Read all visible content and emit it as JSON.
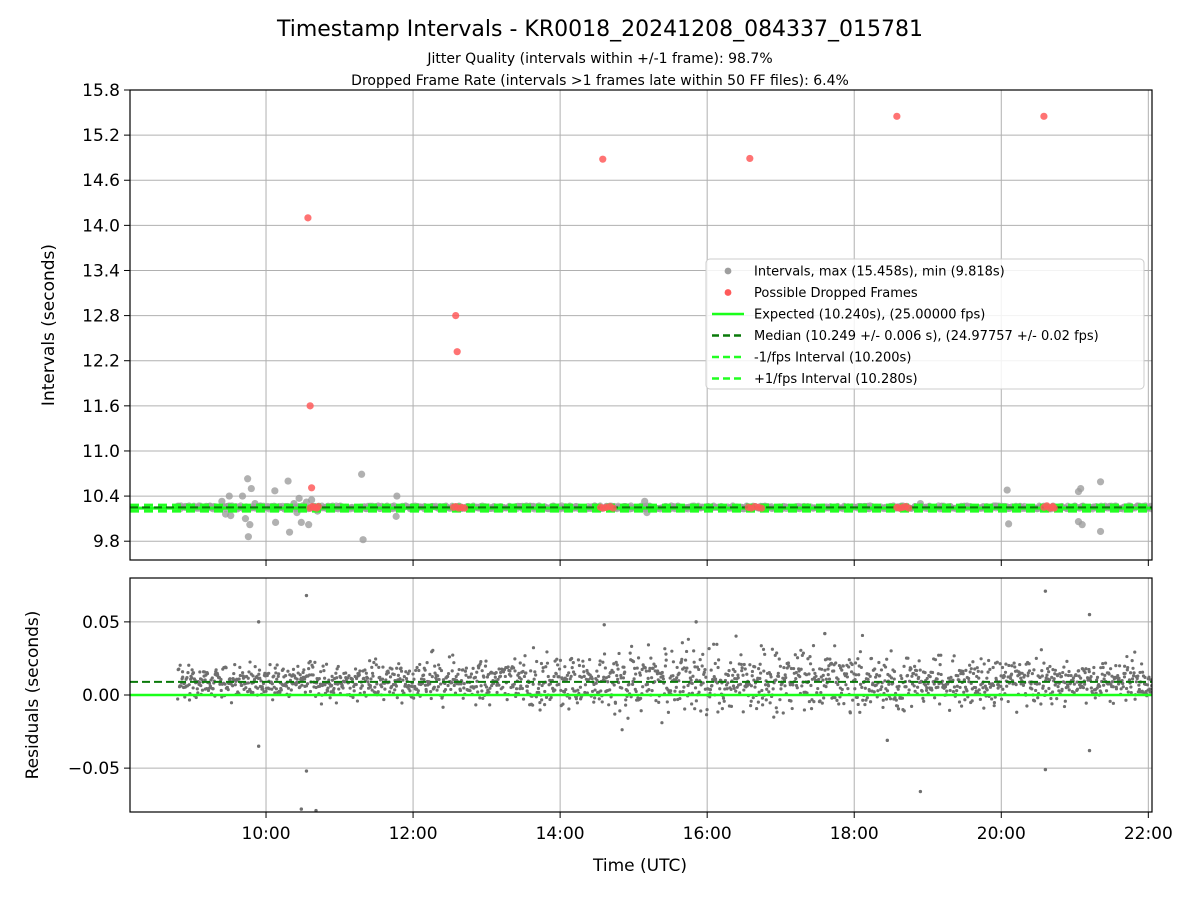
{
  "figure": {
    "title": "Timestamp Intervals - KR0018_20241208_084337_015781",
    "subtitle_1": "Jitter Quality (intervals within +/-1 frame): 98.7%",
    "subtitle_2": "Dropped Frame Rate (intervals >1 frames late within 50 FF files): 6.4%"
  },
  "colors": {
    "intervals": "#9e9e9e",
    "dropped": "#ff5a5a",
    "expected": "#1aff1a",
    "median": "#0a7a0a",
    "fps_bounds": "#22ff22",
    "residuals": "#6f6f6f",
    "grid": "#b0b0b0"
  },
  "chart_data": [
    {
      "type": "scatter",
      "title": "",
      "xlabel": "",
      "ylabel": "Intervals (seconds)",
      "x_unit": "hours UTC",
      "xlim": [
        8.15,
        22.05
      ],
      "ylim": [
        9.55,
        15.8
      ],
      "yticks": [
        9.8,
        10.4,
        11.0,
        11.6,
        12.2,
        12.8,
        13.4,
        14.0,
        14.6,
        15.2,
        15.8
      ],
      "ytick_labels": [
        "9.8",
        "10.4",
        "11.0",
        "11.6",
        "12.2",
        "12.8",
        "13.4",
        "14.0",
        "14.6",
        "15.2",
        "15.8"
      ],
      "grid": true,
      "legend_position": "center-right",
      "legend": [
        {
          "label": "Intervals, max (15.458s), min (9.818s)",
          "kind": "dot-gray"
        },
        {
          "label": "Possible Dropped Frames",
          "kind": "dot-red"
        },
        {
          "label": "Expected (10.240s), (25.00000 fps)",
          "kind": "solid-green"
        },
        {
          "label": "Median (10.249 +/- 0.006 s), (24.97757 +/- 0.02 fps)",
          "kind": "dash-darkgreen"
        },
        {
          "label": "-1/fps Interval (10.200s)",
          "kind": "dash-green"
        },
        {
          "label": "+1/fps Interval (10.280s)",
          "kind": "dash-green"
        }
      ],
      "series": [
        {
          "name": "Intervals, max (15.458s), min (9.818s)",
          "points": [
            [
              9.4,
              10.33
            ],
            [
              9.45,
              10.16
            ],
            [
              9.52,
              10.14
            ],
            [
              9.5,
              10.4
            ],
            [
              9.55,
              10.24
            ],
            [
              9.68,
              10.4
            ],
            [
              9.72,
              10.1
            ],
            [
              9.75,
              10.63
            ],
            [
              9.76,
              9.86
            ],
            [
              9.78,
              10.02
            ],
            [
              9.8,
              10.5
            ],
            [
              9.85,
              10.3
            ],
            [
              10.12,
              10.47
            ],
            [
              10.13,
              10.05
            ],
            [
              10.3,
              10.6
            ],
            [
              10.32,
              9.92
            ],
            [
              10.38,
              10.3
            ],
            [
              10.42,
              10.18
            ],
            [
              10.45,
              10.37
            ],
            [
              10.48,
              10.05
            ],
            [
              10.5,
              10.27
            ],
            [
              10.55,
              10.32
            ],
            [
              10.58,
              10.02
            ],
            [
              10.62,
              10.35
            ],
            [
              10.7,
              10.2
            ],
            [
              11.3,
              10.69
            ],
            [
              11.32,
              9.82
            ],
            [
              11.78,
              10.4
            ],
            [
              11.77,
              10.13
            ],
            [
              12.6,
              10.24
            ],
            [
              15.15,
              10.33
            ],
            [
              15.18,
              10.18
            ],
            [
              18.9,
              10.3
            ],
            [
              20.08,
              10.48
            ],
            [
              20.1,
              10.03
            ],
            [
              21.05,
              10.46
            ],
            [
              21.08,
              10.5
            ],
            [
              21.05,
              10.06
            ],
            [
              21.1,
              10.02
            ],
            [
              21.35,
              10.59
            ],
            [
              21.35,
              9.93
            ]
          ]
        },
        {
          "name": "Possible Dropped Frames",
          "points": [
            [
              10.57,
              14.1
            ],
            [
              10.6,
              11.6
            ],
            [
              10.62,
              10.51
            ],
            [
              12.58,
              12.8
            ],
            [
              12.6,
              12.32
            ],
            [
              14.58,
              14.88
            ],
            [
              16.58,
              14.89
            ],
            [
              18.58,
              15.45
            ],
            [
              20.58,
              15.45
            ],
            [
              10.6,
              10.24
            ],
            [
              10.63,
              10.26
            ],
            [
              10.66,
              10.25
            ],
            [
              10.69,
              10.24
            ],
            [
              10.71,
              10.26
            ],
            [
              12.55,
              10.25
            ],
            [
              12.58,
              10.26
            ],
            [
              12.62,
              10.24
            ],
            [
              12.66,
              10.25
            ],
            [
              12.7,
              10.24
            ],
            [
              14.55,
              10.25
            ],
            [
              14.59,
              10.24
            ],
            [
              14.63,
              10.25
            ],
            [
              14.68,
              10.26
            ],
            [
              14.72,
              10.24
            ],
            [
              16.56,
              10.25
            ],
            [
              16.6,
              10.24
            ],
            [
              16.65,
              10.26
            ],
            [
              16.7,
              10.25
            ],
            [
              16.74,
              10.24
            ],
            [
              18.58,
              10.25
            ],
            [
              18.62,
              10.24
            ],
            [
              18.66,
              10.25
            ],
            [
              18.7,
              10.26
            ],
            [
              18.74,
              10.24
            ],
            [
              20.58,
              10.25
            ],
            [
              20.62,
              10.27
            ],
            [
              20.66,
              10.24
            ],
            [
              20.7,
              10.26
            ],
            [
              20.72,
              10.24
            ]
          ]
        }
      ],
      "reference_lines": {
        "expected": 10.24,
        "median": 10.249,
        "minus_fps": 10.2,
        "plus_fps": 10.28
      }
    },
    {
      "type": "scatter",
      "title": "",
      "xlabel": "Time (UTC)",
      "ylabel": "Residuals (seconds)",
      "x_unit": "hours UTC",
      "xlim": [
        8.15,
        22.05
      ],
      "ylim": [
        -0.08,
        0.08
      ],
      "xticks": [
        10,
        12,
        14,
        16,
        18,
        20,
        22
      ],
      "xtick_labels": [
        "10:00",
        "12:00",
        "14:00",
        "16:00",
        "18:00",
        "20:00",
        "22:00"
      ],
      "yticks": [
        -0.05,
        0.0,
        0.05
      ],
      "ytick_labels": [
        "−0.05",
        "0.00",
        "0.05"
      ],
      "grid": true,
      "reference_lines": {
        "zero": 0.0,
        "median_residual": 0.009
      },
      "series": [
        {
          "name": "Residuals",
          "x_start": 8.8,
          "x_end": 22.05,
          "count": 1900,
          "center": 0.009,
          "spread": 0.008,
          "outliers": [
            [
              10.55,
              0.068
            ],
            [
              10.55,
              -0.052
            ],
            [
              10.48,
              -0.078
            ],
            [
              10.68,
              -0.079
            ],
            [
              9.9,
              0.05
            ],
            [
              9.9,
              -0.035
            ],
            [
              14.6,
              0.048
            ],
            [
              15.85,
              0.05
            ],
            [
              20.6,
              0.071
            ],
            [
              20.6,
              -0.051
            ],
            [
              21.2,
              0.055
            ],
            [
              18.9,
              -0.066
            ],
            [
              21.2,
              -0.038
            ],
            [
              17.6,
              0.042
            ],
            [
              18.45,
              -0.031
            ]
          ]
        }
      ]
    }
  ]
}
